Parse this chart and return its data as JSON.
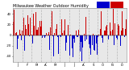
{
  "title": "Milwaukee Weather Outdoor Humidity",
  "n_days": 365,
  "seed": 42,
  "background_color": "#ffffff",
  "plot_bg_color": "#e8e8e8",
  "blue_color": "#0000cc",
  "red_color": "#cc0000",
  "grid_color": "#aaaaaa",
  "ylim": [
    -50,
    50
  ],
  "title_fontsize": 3.5,
  "tick_fontsize": 2.8,
  "bar_width": 0.8
}
